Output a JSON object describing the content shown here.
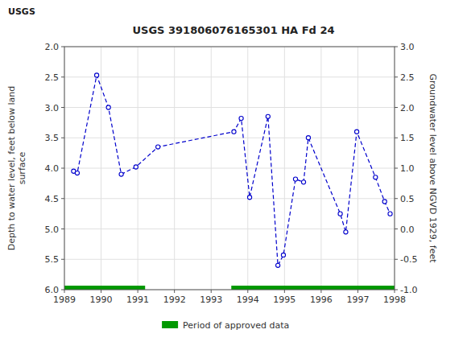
{
  "chart_data": {
    "type": "line",
    "title": "USGS 391806076165301 HA Fd  24",
    "annotations": [
      "USGS"
    ],
    "y_label": "Depth to water level, feet below land\n surface",
    "y2_label": "Groundwater level above NGVD 1929, feet",
    "xlim": [
      1989.0,
      1998.0
    ],
    "xticks": [
      1989,
      1990,
      1991,
      1992,
      1993,
      1994,
      1995,
      1996,
      1997,
      1998
    ],
    "ylim": [
      6.0,
      2.0
    ],
    "yticks": [
      {
        "value": 2.0,
        "label": "2.0"
      },
      2.5,
      {
        "value": 3.0,
        "label": "3.0"
      },
      3.5,
      {
        "value": 4.0,
        "label": "4.0"
      },
      4.5,
      {
        "value": 5.0,
        "label": "5.0"
      },
      5.5,
      {
        "value": 6.0,
        "label": "6.0"
      }
    ],
    "y2lim": [
      -1.0,
      3.0
    ],
    "y2ticks": [
      {
        "value": -1.0,
        "label": "-1.0"
      },
      -0.5,
      {
        "value": 0.0,
        "label": "0.0"
      },
      0.5,
      {
        "value": 1.0,
        "label": "1.0"
      },
      1.5,
      {
        "value": 2.0,
        "label": "2.0"
      },
      2.5,
      {
        "value": 3.0,
        "label": "3.0"
      }
    ],
    "grid": true,
    "legend": "bottom",
    "series": [
      {
        "type": "line",
        "color": "#0000cc",
        "line_style": "dashed",
        "marker": "open-circle",
        "x": [
          1989.25,
          1989.35,
          1989.88,
          1990.2,
          1990.55,
          1990.95,
          1991.55,
          1993.62,
          1993.82,
          1994.05,
          1994.55,
          1994.82,
          1994.97,
          1995.3,
          1995.52,
          1995.65,
          1996.52,
          1996.67,
          1996.97,
          1997.48,
          1997.73,
          1997.88
        ],
        "values": [
          4.05,
          4.08,
          2.47,
          3.0,
          4.1,
          3.98,
          3.65,
          3.4,
          3.18,
          4.48,
          3.15,
          5.6,
          5.43,
          4.18,
          4.23,
          3.5,
          4.75,
          5.05,
          3.4,
          4.15,
          4.55,
          4.75
        ]
      },
      {
        "type": "span",
        "name": "Period of approved data",
        "color": "#009900",
        "x_start": [
          1989.0,
          1993.55
        ],
        "x_end": [
          1991.2,
          1998.0
        ]
      }
    ]
  }
}
